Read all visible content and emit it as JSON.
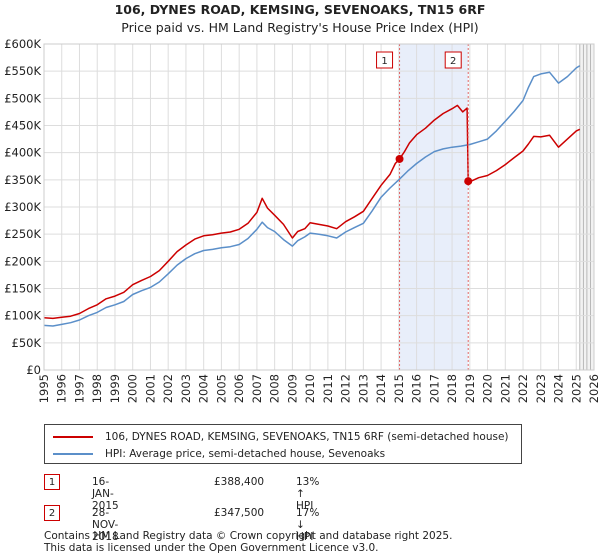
{
  "chart_data": {
    "type": "line",
    "title": "106, DYNES ROAD, KEMSING, SEVENOAKS, TN15 6RF",
    "subtitle": "Price paid vs. HM Land Registry's House Price Index (HPI)",
    "xlim": [
      1995,
      2026
    ],
    "ylim": [
      0,
      600000
    ],
    "x_ticks": [
      1995,
      1996,
      1997,
      1998,
      1999,
      2000,
      2001,
      2002,
      2003,
      2004,
      2005,
      2006,
      2007,
      2008,
      2009,
      2010,
      2011,
      2012,
      2013,
      2014,
      2015,
      2016,
      2017,
      2018,
      2019,
      2020,
      2021,
      2022,
      2023,
      2024,
      2025,
      2026
    ],
    "y_ticks": [
      {
        "value": 0,
        "label": "£0"
      },
      {
        "value": 50000,
        "label": "£50K"
      },
      {
        "value": 100000,
        "label": "£100K"
      },
      {
        "value": 150000,
        "label": "£150K"
      },
      {
        "value": 200000,
        "label": "£200K"
      },
      {
        "value": 250000,
        "label": "£250K"
      },
      {
        "value": 300000,
        "label": "£300K"
      },
      {
        "value": 350000,
        "label": "£350K"
      },
      {
        "value": 400000,
        "label": "£400K"
      },
      {
        "value": 450000,
        "label": "£450K"
      },
      {
        "value": 500000,
        "label": "£500K"
      },
      {
        "value": 550000,
        "label": "£550K"
      },
      {
        "value": 600000,
        "label": "£600K"
      }
    ],
    "highlight_band": [
      2015.04,
      2018.91
    ],
    "forecast_start": 2025.2,
    "series": [
      {
        "name": "106, DYNES ROAD, KEMSING, SEVENOAKS, TN15 6RF (semi-detached house)",
        "color": "#cc0000",
        "x": [
          1995.0,
          1995.5,
          1996.0,
          1996.5,
          1997.0,
          1997.5,
          1998.0,
          1998.5,
          1999.0,
          1999.5,
          2000.0,
          2000.5,
          2001.0,
          2001.5,
          2002.0,
          2002.5,
          2003.0,
          2003.5,
          2004.0,
          2004.5,
          2005.0,
          2005.5,
          2006.0,
          2006.5,
          2007.0,
          2007.3,
          2007.6,
          2008.0,
          2008.5,
          2009.0,
          2009.3,
          2009.7,
          2010.0,
          2010.5,
          2011.0,
          2011.5,
          2012.0,
          2012.5,
          2013.0,
          2013.5,
          2014.0,
          2014.5,
          2014.8,
          2015.04,
          2015.3,
          2015.6,
          2016.0,
          2016.5,
          2017.0,
          2017.5,
          2018.0,
          2018.3,
          2018.6,
          2018.85,
          2018.91,
          2019.1,
          2019.5,
          2020.0,
          2020.5,
          2021.0,
          2021.5,
          2022.0,
          2022.3,
          2022.6,
          2023.0,
          2023.5,
          2024.0,
          2024.5,
          2025.0,
          2025.2
        ],
        "y": [
          96000,
          95000,
          97000,
          99000,
          104000,
          113000,
          120000,
          131000,
          136000,
          143000,
          157000,
          165000,
          172000,
          183000,
          200000,
          218000,
          230000,
          241000,
          247000,
          249000,
          252000,
          254000,
          259000,
          270000,
          290000,
          316000,
          298000,
          285000,
          268000,
          243000,
          255000,
          260000,
          271000,
          268000,
          265000,
          260000,
          273000,
          282000,
          292000,
          316000,
          340000,
          360000,
          380000,
          388400,
          401000,
          418000,
          433000,
          445000,
          460000,
          472000,
          481000,
          487000,
          475000,
          482000,
          347500,
          348000,
          354000,
          358000,
          367000,
          378000,
          391000,
          403000,
          416000,
          430000,
          429000,
          432000,
          410000,
          425000,
          440000,
          443000
        ],
        "sales": [
          {
            "x": 2015.04,
            "y": 388400,
            "label": "1"
          },
          {
            "x": 2018.91,
            "y": 347500,
            "label": "2"
          }
        ]
      },
      {
        "name": "HPI: Average price, semi-detached house, Sevenoaks",
        "color": "#5b8fc9",
        "x": [
          1995.0,
          1995.5,
          1996.0,
          1996.5,
          1997.0,
          1997.5,
          1998.0,
          1998.5,
          1999.0,
          1999.5,
          2000.0,
          2000.5,
          2001.0,
          2001.5,
          2002.0,
          2002.5,
          2003.0,
          2003.5,
          2004.0,
          2004.5,
          2005.0,
          2005.5,
          2006.0,
          2006.5,
          2007.0,
          2007.3,
          2007.6,
          2008.0,
          2008.5,
          2009.0,
          2009.3,
          2009.7,
          2010.0,
          2010.5,
          2011.0,
          2011.5,
          2012.0,
          2012.5,
          2013.0,
          2013.5,
          2014.0,
          2014.5,
          2015.0,
          2015.5,
          2016.0,
          2016.5,
          2017.0,
          2017.5,
          2018.0,
          2018.5,
          2019.0,
          2019.5,
          2020.0,
          2020.5,
          2021.0,
          2021.5,
          2022.0,
          2022.3,
          2022.6,
          2023.0,
          2023.5,
          2024.0,
          2024.5,
          2025.0,
          2025.2
        ],
        "y": [
          82000,
          81000,
          84000,
          87000,
          92000,
          100000,
          106000,
          115000,
          120000,
          126000,
          139000,
          146000,
          152000,
          162000,
          177000,
          193000,
          205000,
          214000,
          220000,
          222000,
          225000,
          227000,
          231000,
          242000,
          259000,
          272000,
          262000,
          255000,
          240000,
          228000,
          238000,
          245000,
          252000,
          250000,
          247000,
          243000,
          254000,
          262000,
          270000,
          293000,
          318000,
          335000,
          350000,
          366000,
          380000,
          392000,
          402000,
          407000,
          410000,
          412000,
          415000,
          420000,
          425000,
          440000,
          458000,
          476000,
          496000,
          520000,
          540000,
          545000,
          548000,
          528000,
          540000,
          556000,
          560000
        ]
      }
    ],
    "legend": [
      {
        "label": "106, DYNES ROAD, KEMSING, SEVENOAKS, TN15 6RF (semi-detached house)",
        "color": "#cc0000"
      },
      {
        "label": "HPI: Average price, semi-detached house, Sevenoaks",
        "color": "#5b8fc9"
      }
    ]
  },
  "transactions": [
    {
      "num": "1",
      "date": "16-JAN-2015",
      "price": "£388,400",
      "hpi": "13% ↑ HPI"
    },
    {
      "num": "2",
      "date": "28-NOV-2018",
      "price": "£347,500",
      "hpi": "17% ↓ HPI"
    }
  ],
  "footer": {
    "line1": "Contains HM Land Registry data © Crown copyright and database right 2025.",
    "line2": "This data is licensed under the Open Government Licence v3.0."
  }
}
